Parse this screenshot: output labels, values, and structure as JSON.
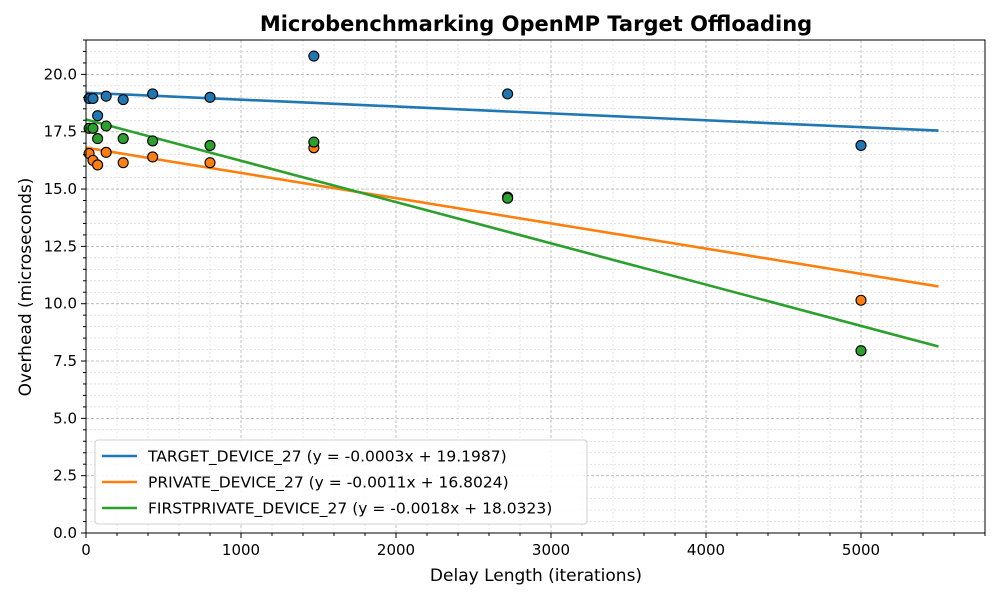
{
  "chart_data": {
    "type": "scatter",
    "title": "Microbenchmarking OpenMP Target Offloading",
    "xlabel": "Delay Length (iterations)",
    "ylabel": "Overhead (microseconds)",
    "xlim": [
      0,
      5800
    ],
    "ylim": [
      0,
      21.5
    ],
    "x_ticks": [
      0,
      1000,
      2000,
      3000,
      4000,
      5000
    ],
    "x_tick_labels": [
      "0",
      "1000",
      "2000",
      "3000",
      "4000",
      "5000"
    ],
    "y_ticks": [
      0,
      2.5,
      5,
      7.5,
      10,
      12.5,
      15,
      17.5,
      20
    ],
    "y_tick_labels": [
      "0.0",
      "2.5",
      "5.0",
      "7.5",
      "10.0",
      "12.5",
      "15.0",
      "17.5",
      "20.0"
    ],
    "x_minor_step": 200,
    "y_minor_step": 0.5,
    "grid": true,
    "legend_position": "lower-left",
    "fit_x_range": [
      0,
      5500
    ],
    "series": [
      {
        "name": "TARGET_DEVICE_27 (y = -0.0003x + 19.1987)",
        "color": "#1f77b4",
        "slope": -0.0003,
        "intercept": 19.1987,
        "x": [
          20,
          45,
          75,
          130,
          240,
          430,
          800,
          1470,
          2720,
          5000
        ],
        "y": [
          18.95,
          18.95,
          18.2,
          19.05,
          18.9,
          19.15,
          19.0,
          20.8,
          19.15,
          16.9
        ]
      },
      {
        "name": "PRIVATE_DEVICE_27 (y = -0.0011x + 16.8024)",
        "color": "#ff7f0e",
        "slope": -0.0011,
        "intercept": 16.8024,
        "x": [
          20,
          45,
          75,
          130,
          240,
          430,
          800,
          1470,
          2720,
          5000
        ],
        "y": [
          16.55,
          16.25,
          16.05,
          16.6,
          16.15,
          16.4,
          16.15,
          16.8,
          14.65,
          10.15
        ]
      },
      {
        "name": "FIRSTPRIVATE_DEVICE_27 (y = -0.0018x + 18.0323)",
        "color": "#2ca02c",
        "slope": -0.0018,
        "intercept": 18.0323,
        "x": [
          20,
          45,
          75,
          130,
          240,
          430,
          800,
          1470,
          2720,
          5000
        ],
        "y": [
          17.65,
          17.65,
          17.2,
          17.75,
          17.2,
          17.1,
          16.9,
          17.05,
          14.6,
          7.95
        ]
      }
    ]
  }
}
